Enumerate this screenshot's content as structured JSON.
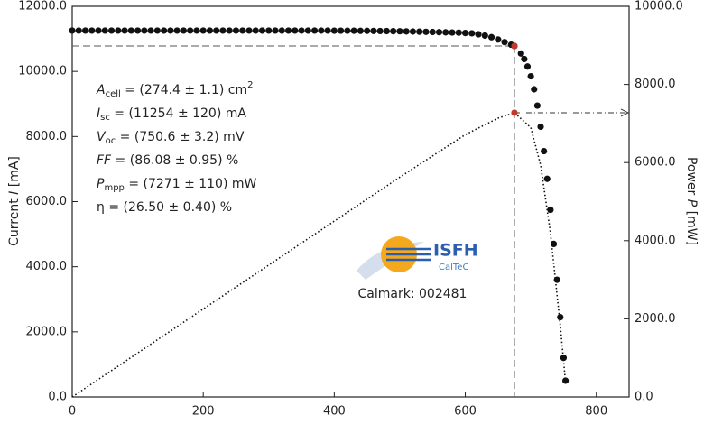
{
  "chart_data": {
    "type": "scatter",
    "xlim": [
      0,
      850
    ],
    "xticks": [
      0,
      200,
      400,
      600,
      800
    ],
    "ylim": [
      0,
      12000
    ],
    "yticks": [
      {
        "value": 0,
        "label": "0.0"
      },
      {
        "value": 2000,
        "label": "2000.0"
      },
      {
        "value": 4000,
        "label": "4000.0"
      },
      {
        "value": 6000,
        "label": "6000.0"
      },
      {
        "value": 8000,
        "label": "8000.0"
      },
      {
        "value": 10000,
        "label": "10000.0"
      },
      {
        "value": 12000,
        "label": "12000.0"
      }
    ],
    "y2lim": [
      0,
      10000
    ],
    "y2ticks": [
      {
        "value": 0,
        "label": "0.0"
      },
      {
        "value": 2000,
        "label": "2000.0"
      },
      {
        "value": 4000,
        "label": "4000.0"
      },
      {
        "value": 6000,
        "label": "6000.0"
      },
      {
        "value": 8000,
        "label": "8000.0"
      },
      {
        "value": 10000,
        "label": "10000.0"
      }
    ],
    "ylabel": [
      "Current ",
      "I",
      " [mA]"
    ],
    "y2label": [
      "Power ",
      "P",
      " [mW]"
    ],
    "series": [
      {
        "color": "#111111",
        "x": [
          0,
          10,
          20,
          30,
          40,
          50,
          60,
          70,
          80,
          90,
          100,
          110,
          120,
          130,
          140,
          150,
          160,
          170,
          180,
          190,
          200,
          210,
          220,
          230,
          240,
          250,
          260,
          270,
          280,
          290,
          300,
          310,
          320,
          330,
          340,
          350,
          360,
          370,
          380,
          390,
          400,
          410,
          420,
          430,
          440,
          450,
          460,
          470,
          480,
          490,
          500,
          510,
          520,
          530,
          540,
          550,
          560,
          570,
          580,
          590,
          600,
          610,
          620,
          630,
          640,
          650,
          660,
          670,
          675,
          685,
          690,
          695,
          700,
          705,
          710,
          715,
          720,
          725,
          730,
          735,
          740,
          745,
          750,
          753
        ],
        "values": [
          11254,
          11254,
          11254,
          11254,
          11254,
          11254,
          11254,
          11254,
          11254,
          11254,
          11254,
          11254,
          11254,
          11254,
          11254,
          11254,
          11254,
          11254,
          11254,
          11254,
          11254,
          11254,
          11254,
          11254,
          11254,
          11254,
          11254,
          11254,
          11254,
          11254,
          11254,
          11254,
          11254,
          11254,
          11254,
          11254,
          11254,
          11254,
          11254,
          11254,
          11250,
          11250,
          11248,
          11248,
          11245,
          11245,
          11242,
          11240,
          11238,
          11235,
          11232,
          11228,
          11224,
          11220,
          11215,
          11210,
          11205,
          11200,
          11195,
          11190,
          11180,
          11170,
          11140,
          11100,
          11050,
          10980,
          10900,
          10820,
          10780,
          10550,
          10380,
          10150,
          9850,
          9450,
          8950,
          8300,
          7550,
          6700,
          5750,
          4700,
          3600,
          2450,
          1200,
          500
        ]
      },
      {
        "color": "#111111",
        "axis": "y2",
        "x": [
          0,
          100,
          200,
          300,
          400,
          500,
          600,
          650,
          675,
          700,
          715,
          730,
          745,
          753
        ],
        "values": [
          0,
          1125,
          2251,
          3376,
          4501,
          5625,
          6714,
          7137,
          7276,
          6895,
          5935,
          4198,
          1825,
          377
        ]
      }
    ],
    "mpp": {
      "x": 675,
      "current": 10780,
      "power": 7276,
      "color": "#c0392b"
    },
    "annotations": [
      [
        "A",
        "cell",
        " = (274.4 ± 1.1) cm",
        "2"
      ],
      [
        "I",
        "sc",
        " = (11254 ± 120) mA"
      ],
      [
        "V",
        "oc",
        " = (750.6 ± 3.2) mV"
      ],
      [
        "FF",
        " = (86.08 ± 0.95) %"
      ],
      [
        "P",
        "mpp",
        " = (7271 ± 110) mW"
      ],
      [
        "η = (26.50 ± 0.40) %"
      ]
    ],
    "logo": {
      "name": "ISFH",
      "sub": "CalTeC"
    },
    "calmark": "Calmark: 002481"
  }
}
